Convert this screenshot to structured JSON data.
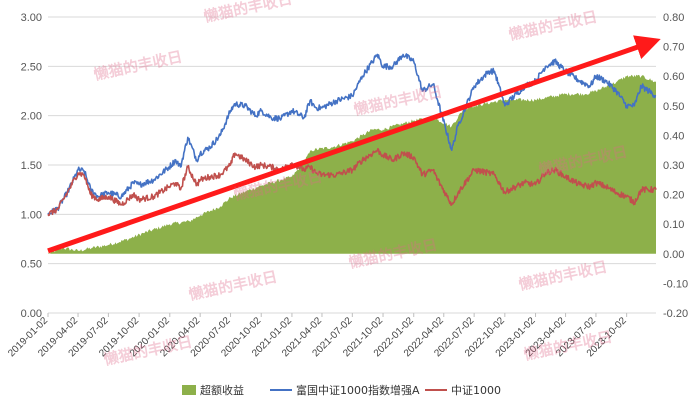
{
  "chart_data": {
    "type": "line",
    "title": "",
    "watermark": "懒猫的丰收日",
    "x_dates": [
      "2019-01-02",
      "2019-04-02",
      "2019-07-02",
      "2019-10-02",
      "2020-01-02",
      "2020-04-02",
      "2020-07-02",
      "2020-10-02",
      "2021-01-02",
      "2021-04-02",
      "2021-07-02",
      "2021-10-02",
      "2022-01-02",
      "2022-04-02",
      "2022-07-02",
      "2022-10-02",
      "2023-01-02",
      "2023-04-02",
      "2023-07-02",
      "2023-10-02"
    ],
    "x_end": "2023-12-29",
    "yleft": {
      "min": 0.0,
      "max": 3.0,
      "ticks": [
        "0.00",
        "0.50",
        "1.00",
        "1.50",
        "2.00",
        "2.50",
        "3.00"
      ]
    },
    "yright": {
      "min": -0.2,
      "max": 0.8,
      "ticks": [
        "-0.20",
        "-0.10",
        "0.00",
        "0.10",
        "0.20",
        "0.30",
        "0.40",
        "0.50",
        "0.60",
        "0.70",
        "0.80"
      ]
    },
    "series": [
      {
        "name": "超额收益",
        "type": "area",
        "axis": "right",
        "color": "#8db04a",
        "points": [
          [
            "2019-01-02",
            0.0
          ],
          [
            "2019-02-15",
            0.02
          ],
          [
            "2019-04-02",
            0.01
          ],
          [
            "2019-05-15",
            0.02
          ],
          [
            "2019-07-02",
            0.03
          ],
          [
            "2019-09-01",
            0.05
          ],
          [
            "2019-10-15",
            0.07
          ],
          [
            "2020-01-02",
            0.1
          ],
          [
            "2020-03-01",
            0.11
          ],
          [
            "2020-04-02",
            0.13
          ],
          [
            "2020-06-01",
            0.16
          ],
          [
            "2020-07-02",
            0.19
          ],
          [
            "2020-08-15",
            0.21
          ],
          [
            "2020-10-02",
            0.23
          ],
          [
            "2020-12-01",
            0.25
          ],
          [
            "2021-01-02",
            0.26
          ],
          [
            "2021-02-01",
            0.3
          ],
          [
            "2021-03-01",
            0.35
          ],
          [
            "2021-05-01",
            0.36
          ],
          [
            "2021-07-01",
            0.38
          ],
          [
            "2021-08-01",
            0.4
          ],
          [
            "2021-09-01",
            0.42
          ],
          [
            "2021-10-02",
            0.42
          ],
          [
            "2021-12-01",
            0.44
          ],
          [
            "2022-01-02",
            0.45
          ],
          [
            "2022-03-01",
            0.46
          ],
          [
            "2022-04-25",
            0.43
          ],
          [
            "2022-06-01",
            0.49
          ],
          [
            "2022-07-02",
            0.5
          ],
          [
            "2022-10-02",
            0.52
          ],
          [
            "2023-01-02",
            0.52
          ],
          [
            "2023-04-02",
            0.54
          ],
          [
            "2023-06-01",
            0.54
          ],
          [
            "2023-07-02",
            0.55
          ],
          [
            "2023-09-01",
            0.58
          ],
          [
            "2023-10-02",
            0.6
          ],
          [
            "2023-11-15",
            0.6
          ],
          [
            "2023-12-29",
            0.58
          ]
        ]
      },
      {
        "name": "富国中证1000指数增强A",
        "type": "line",
        "axis": "left",
        "color": "#4472c4",
        "points": [
          [
            "2019-01-02",
            1.0
          ],
          [
            "2019-01-31",
            1.06
          ],
          [
            "2019-03-01",
            1.22
          ],
          [
            "2019-04-02",
            1.45
          ],
          [
            "2019-04-20",
            1.44
          ],
          [
            "2019-05-10",
            1.25
          ],
          [
            "2019-06-01",
            1.18
          ],
          [
            "2019-07-02",
            1.22
          ],
          [
            "2019-08-10",
            1.18
          ],
          [
            "2019-09-15",
            1.32
          ],
          [
            "2019-10-02",
            1.3
          ],
          [
            "2019-11-15",
            1.35
          ],
          [
            "2019-12-31",
            1.48
          ],
          [
            "2020-01-20",
            1.55
          ],
          [
            "2020-02-03",
            1.48
          ],
          [
            "2020-02-25",
            1.78
          ],
          [
            "2020-03-23",
            1.55
          ],
          [
            "2020-04-02",
            1.62
          ],
          [
            "2020-05-01",
            1.68
          ],
          [
            "2020-06-01",
            1.8
          ],
          [
            "2020-07-02",
            2.05
          ],
          [
            "2020-07-15",
            2.12
          ],
          [
            "2020-08-15",
            2.1
          ],
          [
            "2020-09-15",
            2.0
          ],
          [
            "2020-10-02",
            2.05
          ],
          [
            "2020-11-01",
            1.98
          ],
          [
            "2020-12-01",
            1.97
          ],
          [
            "2021-01-02",
            2.05
          ],
          [
            "2021-02-08",
            1.98
          ],
          [
            "2021-02-25",
            2.15
          ],
          [
            "2021-03-15",
            2.08
          ],
          [
            "2021-04-02",
            2.08
          ],
          [
            "2021-05-15",
            2.15
          ],
          [
            "2021-07-02",
            2.2
          ],
          [
            "2021-08-01",
            2.4
          ],
          [
            "2021-09-01",
            2.55
          ],
          [
            "2021-09-15",
            2.62
          ],
          [
            "2021-10-02",
            2.5
          ],
          [
            "2021-11-01",
            2.5
          ],
          [
            "2021-12-01",
            2.62
          ],
          [
            "2022-01-02",
            2.55
          ],
          [
            "2022-01-28",
            2.25
          ],
          [
            "2022-03-01",
            2.32
          ],
          [
            "2022-03-15",
            2.15
          ],
          [
            "2022-04-26",
            1.65
          ],
          [
            "2022-05-15",
            1.9
          ],
          [
            "2022-07-02",
            2.3
          ],
          [
            "2022-08-15",
            2.45
          ],
          [
            "2022-09-01",
            2.45
          ],
          [
            "2022-10-02",
            2.1
          ],
          [
            "2022-10-15",
            2.15
          ],
          [
            "2022-12-01",
            2.3
          ],
          [
            "2023-01-02",
            2.35
          ],
          [
            "2023-02-01",
            2.5
          ],
          [
            "2023-03-01",
            2.55
          ],
          [
            "2023-04-02",
            2.45
          ],
          [
            "2023-05-15",
            2.35
          ],
          [
            "2023-06-15",
            2.3
          ],
          [
            "2023-07-02",
            2.4
          ],
          [
            "2023-08-01",
            2.35
          ],
          [
            "2023-09-01",
            2.25
          ],
          [
            "2023-10-02",
            2.1
          ],
          [
            "2023-10-25",
            2.1
          ],
          [
            "2023-11-15",
            2.3
          ],
          [
            "2023-12-29",
            2.2
          ]
        ]
      },
      {
        "name": "中证1000",
        "type": "line",
        "axis": "left",
        "color": "#c0504d",
        "points": [
          [
            "2019-01-02",
            1.0
          ],
          [
            "2019-01-31",
            1.05
          ],
          [
            "2019-03-01",
            1.22
          ],
          [
            "2019-04-02",
            1.42
          ],
          [
            "2019-04-20",
            1.4
          ],
          [
            "2019-05-10",
            1.2
          ],
          [
            "2019-06-01",
            1.15
          ],
          [
            "2019-07-02",
            1.18
          ],
          [
            "2019-08-10",
            1.1
          ],
          [
            "2019-09-15",
            1.2
          ],
          [
            "2019-10-02",
            1.15
          ],
          [
            "2019-11-15",
            1.18
          ],
          [
            "2019-12-31",
            1.28
          ],
          [
            "2020-01-20",
            1.32
          ],
          [
            "2020-02-03",
            1.25
          ],
          [
            "2020-02-25",
            1.48
          ],
          [
            "2020-03-23",
            1.3
          ],
          [
            "2020-04-02",
            1.35
          ],
          [
            "2020-05-01",
            1.38
          ],
          [
            "2020-06-01",
            1.4
          ],
          [
            "2020-07-02",
            1.5
          ],
          [
            "2020-07-15",
            1.62
          ],
          [
            "2020-08-15",
            1.55
          ],
          [
            "2020-09-15",
            1.48
          ],
          [
            "2020-10-02",
            1.5
          ],
          [
            "2020-11-01",
            1.48
          ],
          [
            "2020-12-01",
            1.45
          ],
          [
            "2021-01-02",
            1.52
          ],
          [
            "2021-02-08",
            1.45
          ],
          [
            "2021-02-25",
            1.48
          ],
          [
            "2021-03-15",
            1.42
          ],
          [
            "2021-04-02",
            1.4
          ],
          [
            "2021-05-15",
            1.4
          ],
          [
            "2021-07-02",
            1.45
          ],
          [
            "2021-08-01",
            1.55
          ],
          [
            "2021-09-01",
            1.62
          ],
          [
            "2021-09-15",
            1.65
          ],
          [
            "2021-10-02",
            1.6
          ],
          [
            "2021-11-01",
            1.55
          ],
          [
            "2021-12-01",
            1.62
          ],
          [
            "2022-01-02",
            1.58
          ],
          [
            "2022-01-28",
            1.4
          ],
          [
            "2022-03-01",
            1.45
          ],
          [
            "2022-03-15",
            1.35
          ],
          [
            "2022-04-26",
            1.1
          ],
          [
            "2022-05-15",
            1.22
          ],
          [
            "2022-07-02",
            1.45
          ],
          [
            "2022-08-15",
            1.42
          ],
          [
            "2022-09-01",
            1.4
          ],
          [
            "2022-10-02",
            1.22
          ],
          [
            "2022-10-15",
            1.25
          ],
          [
            "2022-12-01",
            1.32
          ],
          [
            "2023-01-02",
            1.3
          ],
          [
            "2023-02-01",
            1.42
          ],
          [
            "2023-03-01",
            1.45
          ],
          [
            "2023-04-02",
            1.38
          ],
          [
            "2023-05-15",
            1.3
          ],
          [
            "2023-06-15",
            1.28
          ],
          [
            "2023-07-02",
            1.32
          ],
          [
            "2023-08-01",
            1.28
          ],
          [
            "2023-09-01",
            1.22
          ],
          [
            "2023-10-02",
            1.18
          ],
          [
            "2023-10-25",
            1.12
          ],
          [
            "2023-11-15",
            1.25
          ],
          [
            "2023-12-29",
            1.25
          ]
        ]
      }
    ],
    "annotation": {
      "type": "arrow",
      "color": "#ff1a1a",
      "from": [
        "2019-01-02",
        0.01
      ],
      "to": [
        "2023-12-29",
        0.72
      ],
      "axis": "right"
    },
    "legend": {
      "position": "bottom"
    },
    "grid": {
      "horizontal": true,
      "vertical": false
    }
  }
}
